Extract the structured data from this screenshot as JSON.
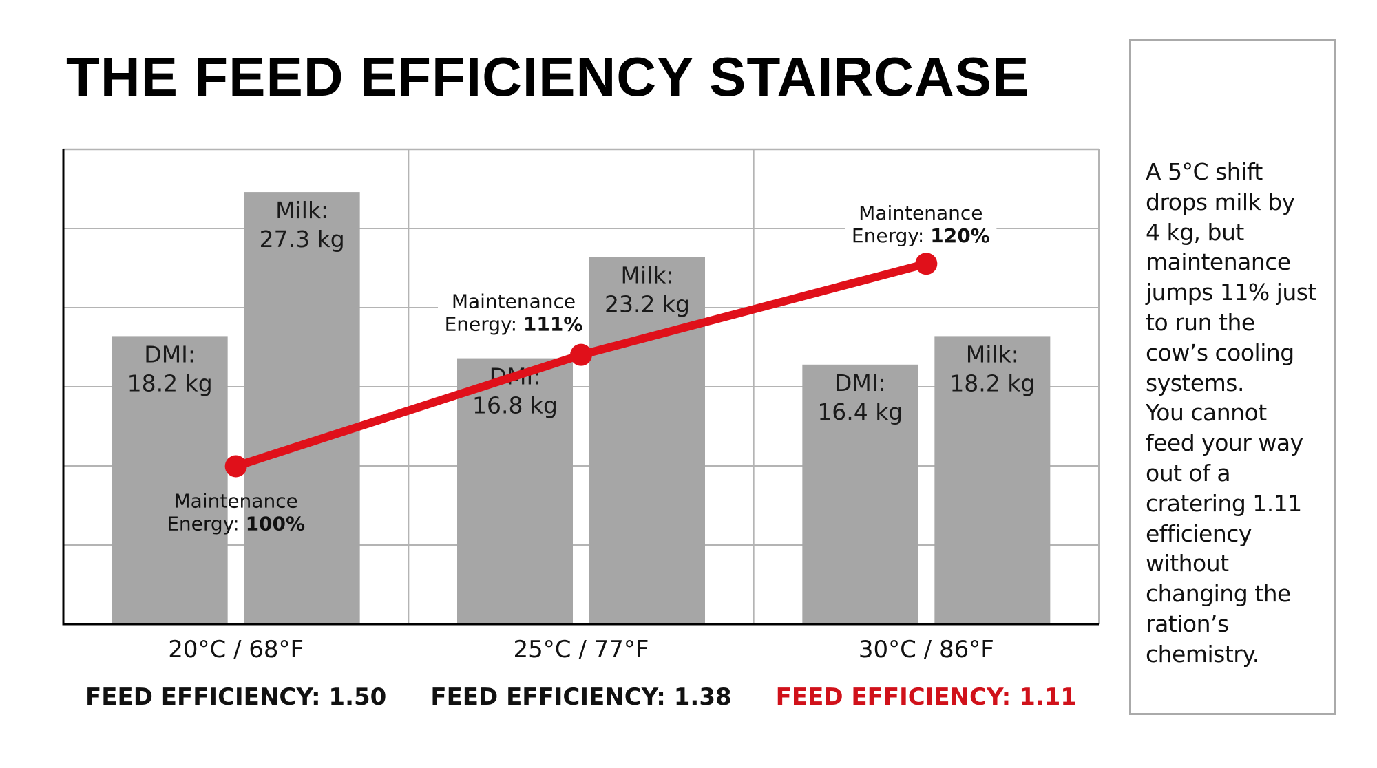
{
  "title": "THE FEED EFFICIENCY STAIRCASE",
  "colors": {
    "bar": "#a6a6a6",
    "line": "#e0101a",
    "highlight_text": "#d0111a",
    "grid": "#b4b4b4",
    "axis": "#000000",
    "text": "#111111"
  },
  "chart_data": {
    "type": "bar",
    "title": "THE FEED EFFICIENCY STAIRCASE",
    "xlabel": "",
    "ylabel": "",
    "ylim": [
      0,
      30
    ],
    "y_gridlines": [
      5,
      10,
      15,
      20,
      25
    ],
    "grid": true,
    "legend": "none",
    "categories": [
      "20°C / 68°F",
      "25°C / 77°F",
      "30°C / 86°F"
    ],
    "series": [
      {
        "name": "DMI",
        "unit": "kg",
        "values": [
          18.2,
          16.8,
          16.4
        ],
        "labels": [
          [
            "DMI:",
            "18.2 kg"
          ],
          [
            "DMI:",
            "16.8 kg"
          ],
          [
            "DMI:",
            "16.4 kg"
          ]
        ]
      },
      {
        "name": "Milk",
        "unit": "kg",
        "values": [
          27.3,
          23.2,
          18.2
        ],
        "labels": [
          [
            "Milk:",
            "27.3 kg"
          ],
          [
            "Milk:",
            "23.2 kg"
          ],
          [
            "Milk:",
            "18.2 kg"
          ]
        ]
      }
    ],
    "line_series": {
      "name": "Maintenance Energy",
      "type": "line",
      "unit": "%",
      "values": [
        100,
        111,
        120
      ],
      "y2lim": [
        84.4,
        131.3
      ],
      "labels": [
        {
          "line1": "Maintenance",
          "prefix": "Energy: ",
          "value": "100%"
        },
        {
          "line1": "Maintenance",
          "prefix": "Energy: ",
          "value": "111%"
        },
        {
          "line1": "Maintenance",
          "prefix": "Energy: ",
          "value": "120%"
        }
      ]
    },
    "feed_efficiency": [
      {
        "label": "FEED EFFICIENCY: 1.50",
        "value": 1.5,
        "highlight": false
      },
      {
        "label": "FEED EFFICIENCY: 1.38",
        "value": 1.38,
        "highlight": false
      },
      {
        "label": "FEED EFFICIENCY: 1.11",
        "value": 1.11,
        "highlight": true
      }
    ]
  },
  "side_panel": {
    "text": "A 5°C shift\ndrops milk by\n4 kg, but\nmaintenance\njumps 11% just\nto run the\ncow’s cooling\nsystems.\nYou cannot\nfeed your way\nout of a\ncratering 1.11\nefficiency\nwithout\nchanging the\nration’s\nchemistry."
  }
}
